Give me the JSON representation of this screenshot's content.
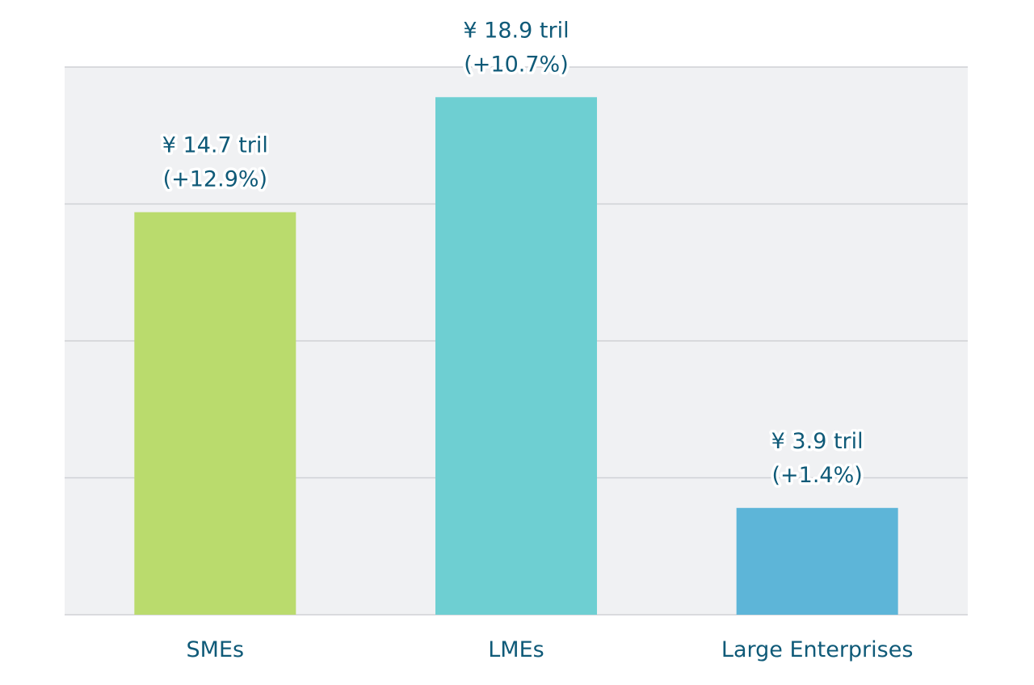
{
  "chart_data": {
    "type": "bar",
    "title": "",
    "xlabel": "",
    "ylabel": "",
    "ylim": [
      0,
      20
    ],
    "grid": true,
    "categories": [
      "SMEs",
      "LMEs",
      "Large Enterprises"
    ],
    "values": [
      14.7,
      18.9,
      3.9
    ],
    "value_labels": [
      "¥ 14.7 tril",
      "¥ 18.9 tril",
      "¥ 3.9 tril"
    ],
    "change_labels": [
      "(+12.9%)",
      "(+10.7%)",
      "(+1.4%)"
    ],
    "colors": [
      "#badb6d",
      "#6ecfd2",
      "#5db5d8"
    ],
    "background": "#f0f1f3",
    "gridline_color": "#cfd1d5",
    "text_color": "#0f5a78"
  }
}
